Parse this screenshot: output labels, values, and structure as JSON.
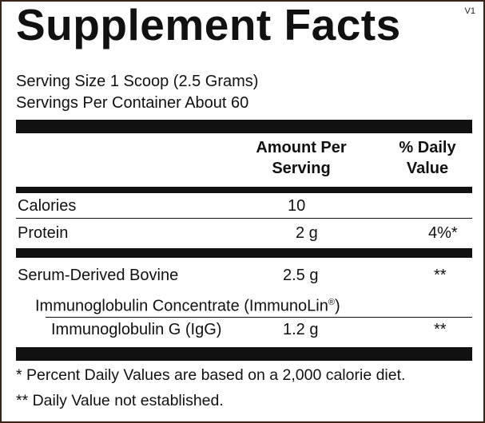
{
  "panel": {
    "version": "V1",
    "title": "Supplement Facts",
    "serving_size": "Serving Size 1 Scoop (2.5 Grams)",
    "servings_per_container": "Servings Per Container About 60"
  },
  "header": {
    "amount_line1": "Amount Per",
    "amount_line2": "Serving",
    "dv_line1": "% Daily",
    "dv_line2": "Value"
  },
  "rows": [
    {
      "name": "Calories",
      "amount": "10",
      "dv": ""
    },
    {
      "name": "Protein",
      "amount": "2 g",
      "dv": "4%*"
    },
    {
      "name": "Serum-Derived Bovine",
      "name_cont": "Immunoglobulin Concentrate (ImmunoLin",
      "reg": "®",
      "name_end": ")",
      "amount": "2.5 g",
      "dv": "**"
    },
    {
      "name": "Immunoglobulin G (IgG)",
      "amount": "1.2 g",
      "dv": "**"
    }
  ],
  "footnotes": [
    "* Percent Daily Values are based on a 2,000 calorie diet.",
    "** Daily Value not established."
  ],
  "colors": {
    "border": "#3a2418",
    "ink": "#111111"
  }
}
